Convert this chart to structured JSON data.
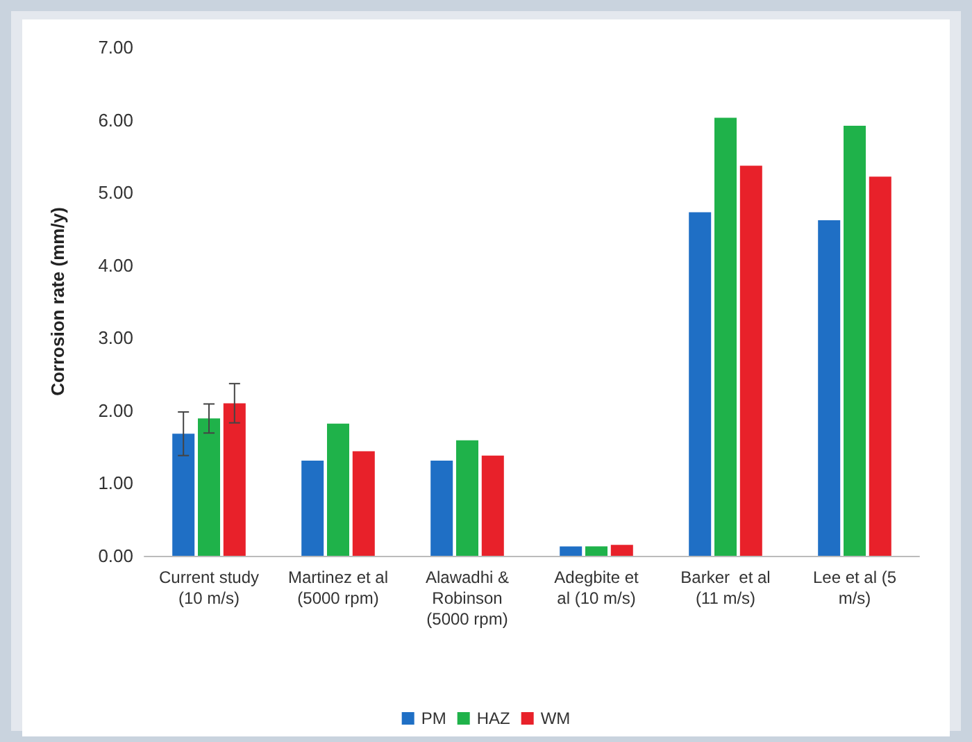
{
  "chart_data": {
    "type": "bar",
    "ylabel": "Corrosion rate (mm/y)",
    "categories": [
      "Current study\n(10 m/s)",
      "Martinez et al\n(5000 rpm)",
      "Alawadhi &\nRobinson\n(5000 rpm)",
      "Adegbite et\nal (10 m/s)",
      "Barker  et al\n(11 m/s)",
      "Lee et al (5\nm/s)"
    ],
    "series": [
      {
        "name": "PM",
        "color": "#1f6fc5",
        "values": [
          1.68,
          1.31,
          1.31,
          0.13,
          4.73,
          4.62
        ],
        "errors": [
          0.3,
          null,
          null,
          null,
          null,
          null
        ]
      },
      {
        "name": "HAZ",
        "color": "#1fb24a",
        "values": [
          1.89,
          1.82,
          1.59,
          0.13,
          6.03,
          5.92
        ],
        "errors": [
          0.2,
          null,
          null,
          null,
          null,
          null
        ]
      },
      {
        "name": "WM",
        "color": "#e8212a",
        "values": [
          2.1,
          1.44,
          1.38,
          0.15,
          5.37,
          5.22
        ],
        "errors": [
          0.27,
          null,
          null,
          null,
          null,
          null
        ]
      }
    ],
    "ylim": [
      0,
      7
    ],
    "yticks": [
      {
        "value": 0,
        "label": "0.00"
      },
      {
        "value": 1,
        "label": "1.00"
      },
      {
        "value": 2,
        "label": "2.00"
      },
      {
        "value": 3,
        "label": "3.00"
      },
      {
        "value": 4,
        "label": "4.00"
      },
      {
        "value": 5,
        "label": "5.00"
      },
      {
        "value": 6,
        "label": "6.00"
      },
      {
        "value": 7,
        "label": "7.00"
      }
    ],
    "grid": false,
    "legend": "bottom"
  }
}
